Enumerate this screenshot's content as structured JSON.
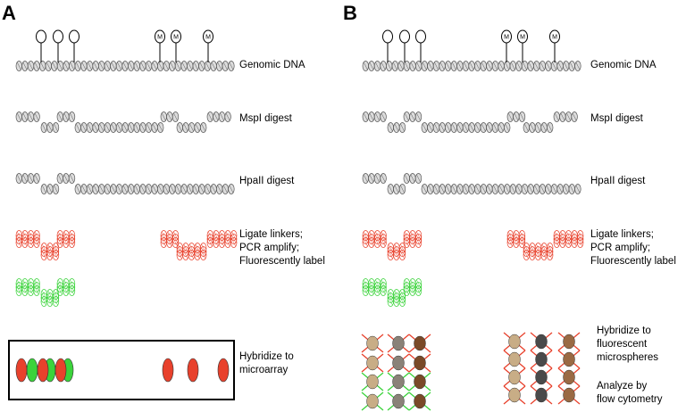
{
  "panel_a": {
    "letter": "A",
    "steps": {
      "genomic": "Genomic DNA",
      "mspi": "MspI digest",
      "hpaii": "HpaII digest",
      "ligate": [
        "Ligate linkers;",
        "PCR amplify;",
        "Fluorescently label"
      ],
      "hybridize": [
        "Hybridize to",
        "microarray"
      ]
    },
    "methyl_mark": "M"
  },
  "panel_b": {
    "letter": "B",
    "steps": {
      "genomic": "Genomic DNA",
      "mspi": "MspI digest",
      "hpaii": "HpaII digest",
      "ligate": [
        "Ligate linkers;",
        "PCR amplify;",
        "Fluorescently label"
      ],
      "hybridize": [
        "Hybridize to",
        "fluorescent",
        "microspheres"
      ],
      "analyze": [
        "Analyze by",
        "flow cytometry"
      ]
    },
    "methyl_mark": "M"
  },
  "colors": {
    "dna_fill": "#dcdcdc",
    "dna_stroke": "#555555",
    "red_label": "#e8412c",
    "green_label": "#3bd33b",
    "bead_tan": "#c8ad86",
    "bead_gray": "#8a8278",
    "bead_brown": "#7a4a28",
    "bead_dark": "#4a4a4a",
    "bead_mid": "#9a6a44"
  }
}
